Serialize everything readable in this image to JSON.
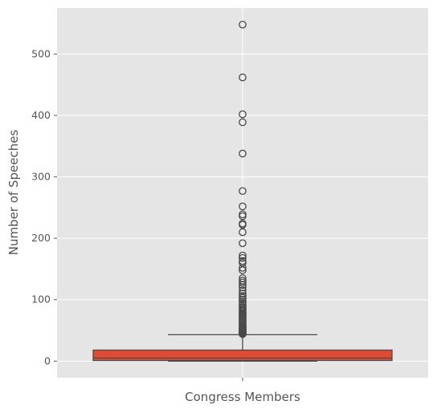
{
  "chart_data": {
    "type": "box",
    "xlabel": "Congress Members",
    "ylabel": "Number of Speeches",
    "ylim": [
      -27,
      575
    ],
    "yticks": [
      0,
      100,
      200,
      300,
      400,
      500
    ],
    "grid": true,
    "box": {
      "category": "",
      "min": 0,
      "q1": 1,
      "median": 5,
      "q3": 18,
      "whisker_low": 0,
      "whisker_high": 43
    },
    "outliers": [
      548,
      462,
      402,
      389,
      338,
      277,
      252,
      239,
      236,
      224,
      222,
      210,
      192,
      172,
      168,
      163,
      160,
      152,
      148,
      135,
      131,
      128,
      124,
      120,
      115,
      110,
      106,
      103,
      100,
      97,
      94,
      91,
      88,
      86,
      84,
      82,
      80,
      78,
      76,
      74,
      72,
      70,
      68,
      66,
      64,
      62,
      60,
      58,
      56,
      55,
      54,
      53,
      52,
      51,
      50,
      49,
      48,
      47,
      46,
      45,
      44
    ],
    "colors": {
      "background": "#e5e5e5",
      "grid": "#ffffff",
      "box_fill": "#e24a33",
      "line": "#4a4a4a",
      "outlier_edge": "#4a4a4a"
    }
  }
}
